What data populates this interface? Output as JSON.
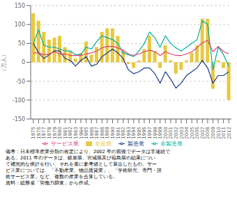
{
  "chart_data": {
    "type": "bar",
    "ylabel": "（万人）",
    "categories": [
      "1975",
      "1976",
      "1977",
      "1978",
      "1979",
      "1980",
      "1981",
      "1982",
      "1983",
      "1984",
      "1985",
      "1986",
      "1987",
      "1988",
      "1989",
      "1990",
      "1991",
      "1992",
      "1993",
      "1994",
      "1995",
      "1996",
      "1997",
      "1998",
      "1999",
      "2000",
      "2001",
      "2002",
      "2003",
      "2004",
      "2005",
      "2006",
      "2007",
      "2008",
      "2009",
      "2010",
      "2011",
      "2012"
    ],
    "series": [
      {
        "name": "全産業",
        "type": "bar",
        "color": "#E8C840",
        "values": [
          130,
          110,
          80,
          60,
          65,
          70,
          40,
          30,
          10,
          25,
          55,
          20,
          40,
          80,
          90,
          90,
          70,
          30,
          -5,
          -15,
          5,
          35,
          70,
          30,
          -15,
          45,
          5,
          -30,
          -20,
          5,
          25,
          45,
          115,
          115,
          -70,
          5,
          -15,
          -100
        ]
      },
      {
        "name": "製造業",
        "type": "line",
        "color": "#1a3a8a",
        "values": [
          50,
          25,
          10,
          20,
          30,
          30,
          10,
          5,
          -10,
          5,
          15,
          -10,
          -5,
          15,
          25,
          35,
          25,
          10,
          -20,
          -30,
          -25,
          -15,
          -15,
          -30,
          -55,
          -25,
          -45,
          -68,
          -55,
          -35,
          -25,
          -15,
          5,
          -15,
          -55,
          -35,
          -35,
          -25
        ]
      },
      {
        "name": "非製造業",
        "type": "line",
        "color": "#00b0a0",
        "values": [
          50,
          85,
          45,
          40,
          40,
          35,
          30,
          30,
          20,
          20,
          40,
          35,
          55,
          70,
          65,
          60,
          50,
          25,
          20,
          15,
          30,
          50,
          80,
          65,
          40,
          70,
          50,
          38,
          30,
          40,
          50,
          60,
          110,
          100,
          -20,
          40,
          20,
          -10
        ]
      },
      {
        "name": "サービス業",
        "type": "line",
        "color": "#e0407a",
        "values": [
          25,
          25,
          20,
          22,
          28,
          22,
          22,
          18,
          18,
          18,
          22,
          25,
          30,
          38,
          42,
          42,
          38,
          32,
          22,
          18,
          22,
          28,
          32,
          28,
          18,
          28,
          22,
          18,
          18,
          22,
          28,
          38,
          52,
          58,
          28,
          42,
          28,
          22
        ]
      }
    ],
    "ylim": [
      -150,
      150
    ],
    "yticks": [
      -150,
      -100,
      -50,
      0,
      50,
      100,
      150
    ],
    "grid": true,
    "annotations": [
      "備考：日本標準産業分類の改定により、2002 年の前後でデータは非連続で",
      "ある。2011 年のデータは、岐阜県、宮城県及び福島県の結果につい",
      "て補完的な推計を行い、それを基に参考値として算出したもの。サー",
      "ビス業については、「不動産業、物品賃貸業」、「学術研究、専門・技",
      "術サービス業」など、複数の産業を合算している。",
      "資料：総務省「労働力調査」から作成。"
    ]
  }
}
